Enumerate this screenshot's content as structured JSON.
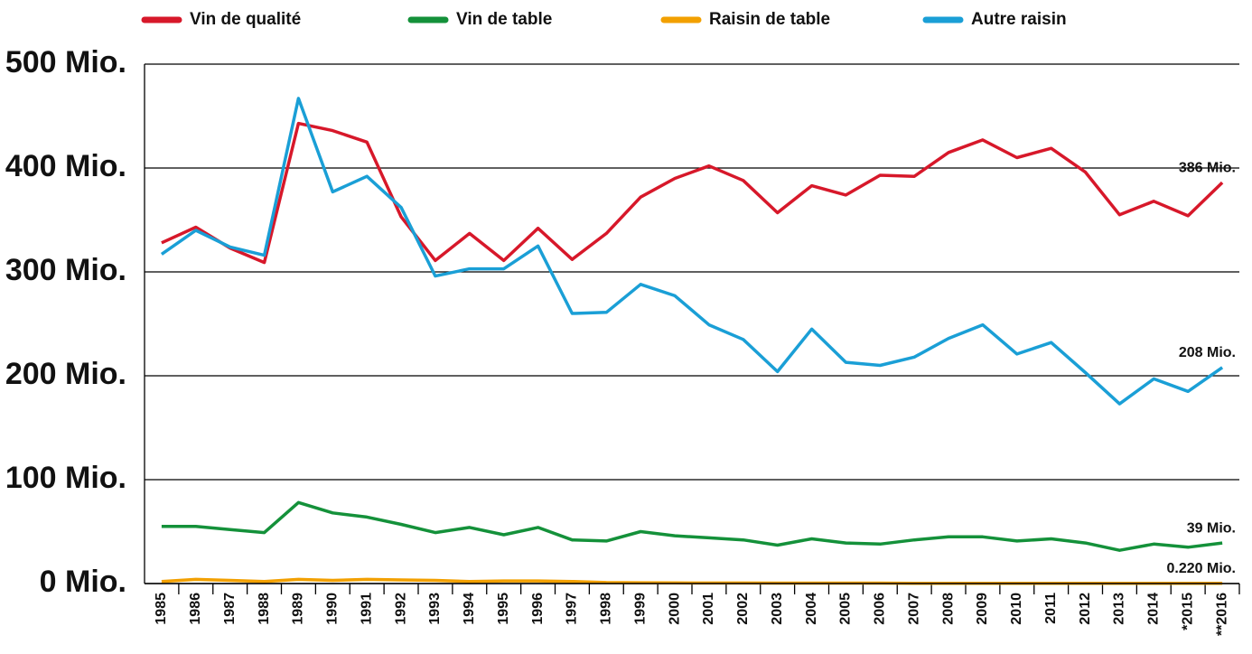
{
  "chart_data": {
    "type": "line",
    "categories": [
      "1985",
      "1986",
      "1987",
      "1988",
      "1989",
      "1990",
      "1991",
      "1992",
      "1993",
      "1994",
      "1995",
      "1996",
      "1997",
      "1998",
      "1999",
      "2000",
      "2001",
      "2002",
      "2003",
      "2004",
      "2005",
      "2006",
      "2007",
      "2008",
      "2009",
      "2010",
      "2011",
      "2012",
      "2013",
      "2014",
      "*2015",
      "**2016"
    ],
    "series": [
      {
        "name": "Vin de qualité",
        "color": "#d7182a",
        "values": [
          328,
          343,
          323,
          309,
          443,
          436,
          425,
          353,
          311,
          337,
          311,
          342,
          312,
          337,
          372,
          390,
          402,
          388,
          357,
          383,
          374,
          393,
          392,
          415,
          427,
          410,
          419,
          396,
          355,
          368,
          354,
          386
        ],
        "value_labels": [
          null,
          null,
          null,
          null,
          null,
          null,
          null,
          null,
          null,
          null,
          null,
          null,
          null,
          null,
          null,
          null,
          null,
          null,
          null,
          null,
          null,
          null,
          null,
          null,
          null,
          null,
          null,
          null,
          null,
          null,
          null,
          "386 Mio."
        ]
      },
      {
        "name": "Vin de table",
        "color": "#14913a",
        "values": [
          55,
          55,
          52,
          49,
          78,
          68,
          64,
          57,
          49,
          54,
          47,
          54,
          42,
          41,
          50,
          46,
          44,
          42,
          37,
          43,
          39,
          38,
          42,
          45,
          45,
          41,
          43,
          39,
          32,
          38,
          35,
          39
        ],
        "value_labels": [
          null,
          null,
          null,
          null,
          null,
          null,
          null,
          null,
          null,
          null,
          null,
          null,
          null,
          null,
          null,
          null,
          null,
          null,
          null,
          null,
          null,
          null,
          null,
          null,
          null,
          null,
          null,
          null,
          null,
          null,
          null,
          "39 Mio."
        ]
      },
      {
        "name": "Raisin de table",
        "color": "#f2a000",
        "values": [
          2,
          4,
          3,
          2,
          4,
          3,
          4,
          3.5,
          3,
          2,
          2.5,
          2.5,
          2,
          1,
          0.8,
          0.6,
          0.5,
          0.5,
          0.4,
          0.4,
          0.4,
          0.4,
          0.3,
          0.3,
          0.3,
          0.3,
          0.3,
          0.3,
          0.25,
          0.25,
          0.22,
          0.22
        ],
        "value_labels": [
          null,
          null,
          null,
          null,
          null,
          null,
          null,
          null,
          null,
          null,
          null,
          null,
          null,
          null,
          null,
          null,
          null,
          null,
          null,
          null,
          null,
          null,
          null,
          null,
          null,
          null,
          null,
          null,
          null,
          null,
          null,
          "0.220 Mio."
        ]
      },
      {
        "name": "Autre raisin",
        "color": "#1a9fd6",
        "values": [
          317,
          340,
          324,
          316,
          467,
          377,
          392,
          362,
          296,
          303,
          303,
          325,
          260,
          261,
          288,
          277,
          249,
          235,
          204,
          245,
          213,
          210,
          218,
          236,
          249,
          221,
          232,
          203,
          173,
          197,
          185,
          208
        ],
        "value_labels": [
          null,
          null,
          null,
          null,
          null,
          null,
          null,
          null,
          null,
          null,
          null,
          null,
          null,
          null,
          null,
          null,
          null,
          null,
          null,
          null,
          null,
          null,
          null,
          null,
          null,
          null,
          null,
          null,
          null,
          null,
          null,
          "208 Mio."
        ]
      }
    ],
    "ylim": [
      0,
      500
    ],
    "yticks": [
      {
        "value": 0,
        "label": "0 Mio."
      },
      {
        "value": 100,
        "label": "100 Mio."
      },
      {
        "value": 200,
        "label": "200 Mio."
      },
      {
        "value": 300,
        "label": "300 Mio."
      },
      {
        "value": 400,
        "label": "400 Mio."
      },
      {
        "value": 500,
        "label": "500 Mio."
      }
    ],
    "grid": true,
    "legend": "top"
  }
}
